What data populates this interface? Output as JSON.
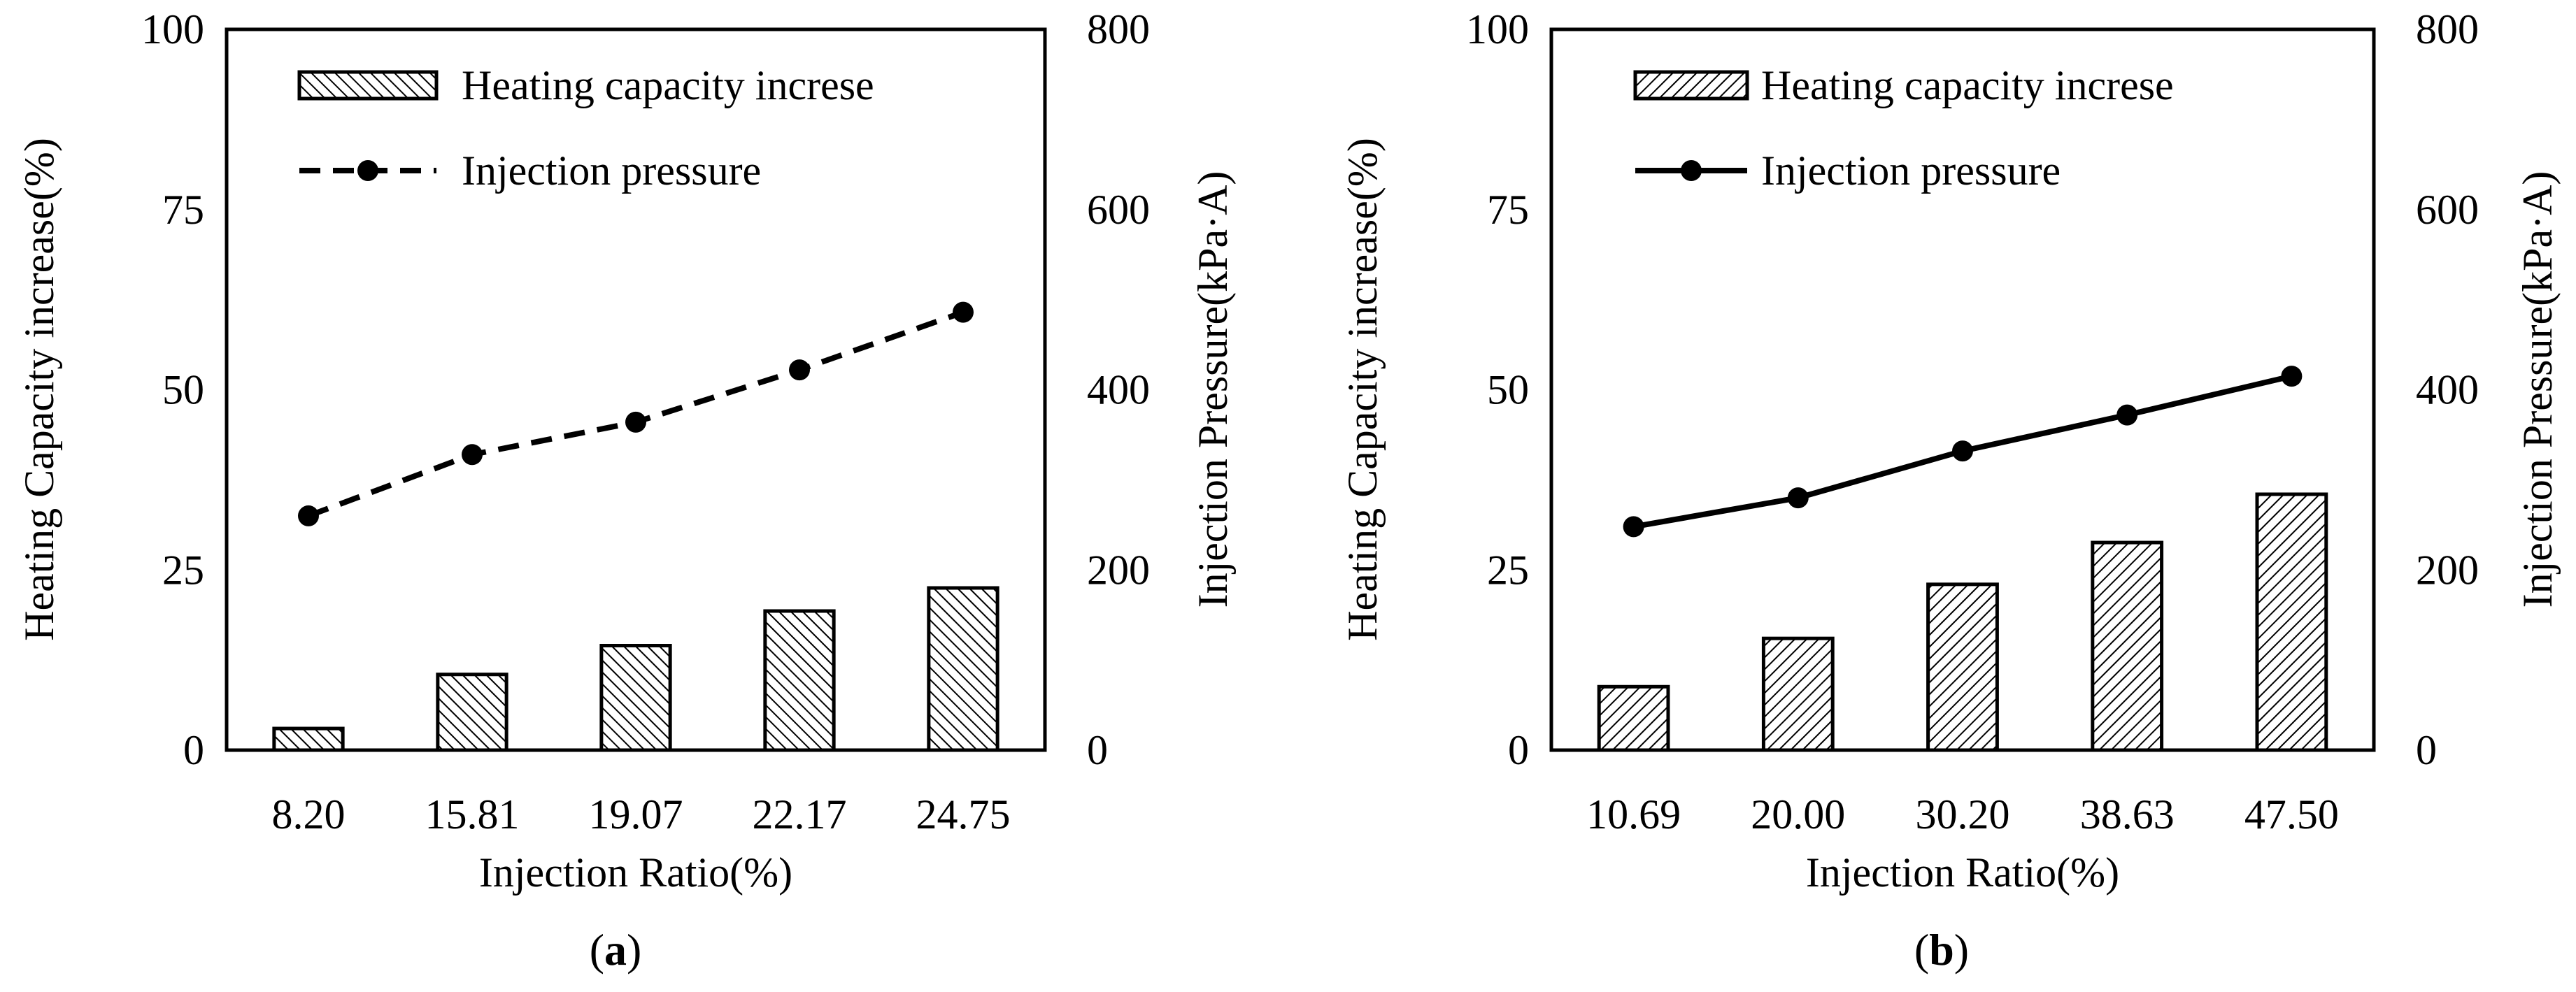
{
  "chart_data": [
    {
      "type": "bar",
      "panel_label": "a",
      "categories": [
        "8.20",
        "15.81",
        "19.07",
        "22.17",
        "24.75"
      ],
      "xlabel": "Injection Ratio(%)",
      "ylabel": "Heating Capacity increase(%)",
      "y2label": "Injection Pressure(kPa·A)",
      "ylim": [
        0,
        100
      ],
      "y2lim": [
        0,
        800
      ],
      "yticks": [
        0,
        25,
        50,
        75,
        100
      ],
      "y2ticks": [
        0,
        200,
        400,
        600,
        800
      ],
      "grid": false,
      "legend_position": "top-left",
      "series": [
        {
          "name": "Heating capacity increse",
          "kind": "bar",
          "axis": "left",
          "hatch": "backslash",
          "values": [
            3.0,
            10.5,
            14.5,
            19.3,
            22.5
          ]
        },
        {
          "name": "Injection pressure",
          "kind": "line",
          "axis": "right",
          "line_style": "dashed",
          "values": [
            260,
            328,
            364,
            422,
            486
          ]
        }
      ]
    },
    {
      "type": "bar",
      "panel_label": "b",
      "categories": [
        "10.69",
        "20.00",
        "30.20",
        "38.63",
        "47.50"
      ],
      "xlabel": "Injection Ratio(%)",
      "ylabel": "Heating Capacity increase(%)",
      "y2label": "Injection Pressure(kPa·A)",
      "ylim": [
        0,
        100
      ],
      "y2lim": [
        0,
        800
      ],
      "yticks": [
        0,
        25,
        50,
        75,
        100
      ],
      "y2ticks": [
        0,
        200,
        400,
        600,
        800
      ],
      "grid": false,
      "legend_position": "top-left",
      "series": [
        {
          "name": "Heating capacity increse",
          "kind": "bar",
          "axis": "left",
          "hatch": "slash",
          "values": [
            8.8,
            15.5,
            23.0,
            28.8,
            35.5
          ]
        },
        {
          "name": "Injection pressure",
          "kind": "line",
          "axis": "right",
          "line_style": "solid",
          "values": [
            248,
            280,
            332,
            372,
            415
          ]
        }
      ]
    }
  ],
  "colors": {
    "bar_fill": "#ffffff",
    "ink": "#000000"
  }
}
